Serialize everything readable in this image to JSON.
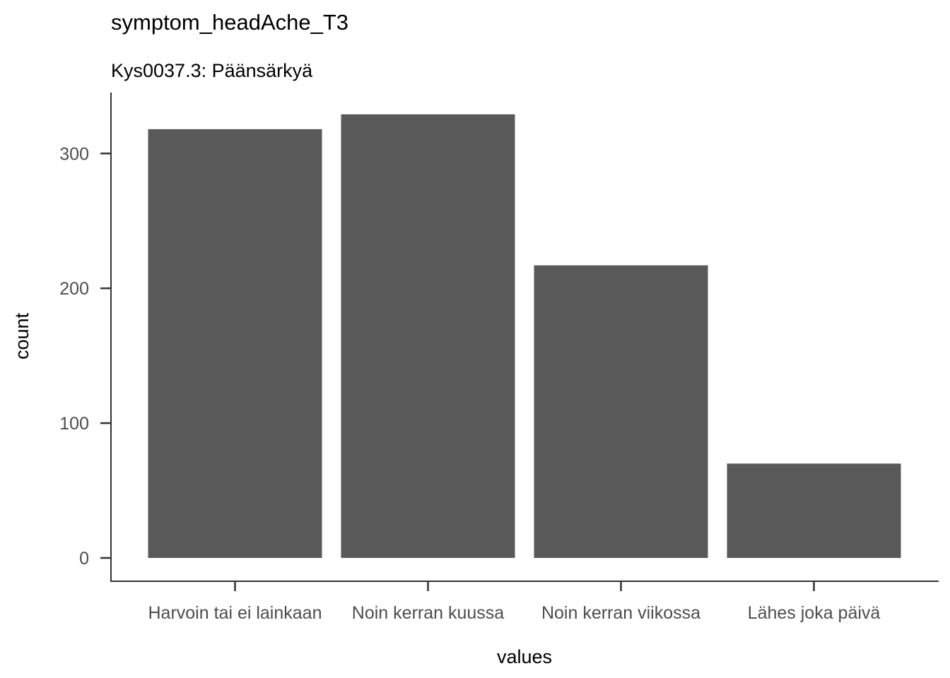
{
  "chart_data": {
    "type": "bar",
    "title": "symptom_headAche_T3",
    "subtitle": "Kys0037.3: Päänsärkyä",
    "xlabel": "values",
    "ylabel": "count",
    "categories": [
      "Harvoin tai ei lainkaan",
      "Noin kerran kuussa",
      "Noin kerran viikossa",
      "Lähes joka päivä"
    ],
    "values": [
      318,
      329,
      217,
      70
    ],
    "ylim": [
      0,
      345
    ],
    "yticks": [
      0,
      100,
      200,
      300
    ],
    "bar_color": "#595959",
    "grid": false,
    "legend": "none"
  }
}
